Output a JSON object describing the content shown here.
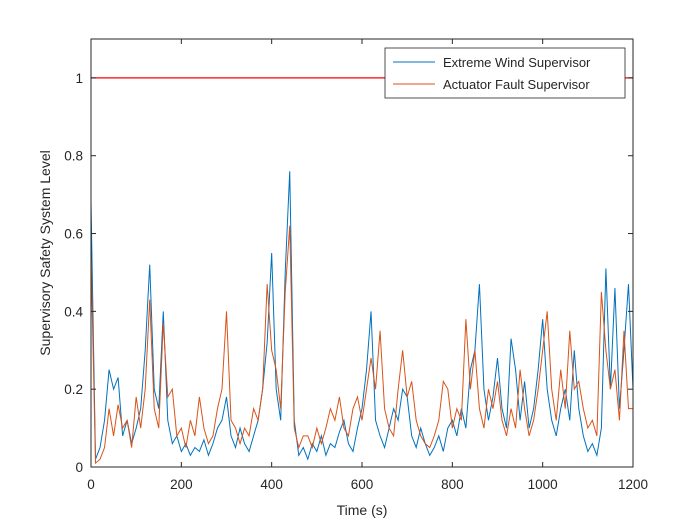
{
  "chart_data": {
    "type": "line",
    "xlabel": "Time (s)",
    "ylabel": "Supervisory Safety System Level",
    "xlim": [
      0,
      1200
    ],
    "ylim": [
      0,
      1.1
    ],
    "xticks": [
      0,
      200,
      400,
      600,
      800,
      1000,
      1200
    ],
    "yticks": [
      0,
      0.2,
      0.4,
      0.6,
      0.8,
      1
    ],
    "legend": "top-right",
    "hlines": [
      {
        "y": 1,
        "color": "#ff0000"
      }
    ],
    "x": [
      0,
      10,
      20,
      30,
      40,
      50,
      60,
      70,
      80,
      90,
      100,
      110,
      120,
      130,
      140,
      150,
      160,
      170,
      180,
      190,
      200,
      210,
      220,
      230,
      240,
      250,
      260,
      270,
      280,
      290,
      300,
      310,
      320,
      330,
      340,
      350,
      360,
      370,
      380,
      390,
      400,
      410,
      420,
      430,
      440,
      450,
      460,
      470,
      480,
      490,
      500,
      510,
      520,
      530,
      540,
      550,
      560,
      570,
      580,
      590,
      600,
      610,
      620,
      630,
      640,
      650,
      660,
      670,
      680,
      690,
      700,
      710,
      720,
      730,
      740,
      750,
      760,
      770,
      780,
      790,
      800,
      810,
      820,
      830,
      840,
      850,
      860,
      870,
      880,
      890,
      900,
      910,
      920,
      930,
      940,
      950,
      960,
      970,
      980,
      990,
      1000,
      1010,
      1020,
      1030,
      1040,
      1050,
      1060,
      1070,
      1080,
      1090,
      1100,
      1110,
      1120,
      1130,
      1140,
      1150,
      1160,
      1170,
      1180,
      1190,
      1200
    ],
    "series": [
      {
        "name": "Extreme Wind Supervisor",
        "color": "#0072bd",
        "values": [
          0.68,
          0.02,
          0.05,
          0.12,
          0.25,
          0.2,
          0.23,
          0.08,
          0.12,
          0.06,
          0.1,
          0.15,
          0.3,
          0.52,
          0.2,
          0.15,
          0.4,
          0.12,
          0.06,
          0.08,
          0.04,
          0.06,
          0.03,
          0.05,
          0.04,
          0.07,
          0.03,
          0.06,
          0.1,
          0.12,
          0.18,
          0.08,
          0.05,
          0.1,
          0.06,
          0.04,
          0.08,
          0.12,
          0.2,
          0.32,
          0.55,
          0.2,
          0.12,
          0.5,
          0.76,
          0.12,
          0.03,
          0.05,
          0.02,
          0.06,
          0.04,
          0.08,
          0.03,
          0.06,
          0.05,
          0.09,
          0.12,
          0.06,
          0.04,
          0.1,
          0.15,
          0.25,
          0.4,
          0.12,
          0.08,
          0.05,
          0.1,
          0.15,
          0.12,
          0.2,
          0.18,
          0.08,
          0.05,
          0.1,
          0.06,
          0.03,
          0.05,
          0.08,
          0.04,
          0.1,
          0.12,
          0.08,
          0.15,
          0.1,
          0.25,
          0.3,
          0.47,
          0.2,
          0.12,
          0.18,
          0.28,
          0.15,
          0.1,
          0.33,
          0.25,
          0.12,
          0.22,
          0.1,
          0.15,
          0.25,
          0.38,
          0.2,
          0.12,
          0.08,
          0.15,
          0.2,
          0.12,
          0.3,
          0.15,
          0.08,
          0.04,
          0.06,
          0.03,
          0.1,
          0.51,
          0.2,
          0.46,
          0.15,
          0.3,
          0.47,
          0.2
        ]
      },
      {
        "name": "Actuator Fault Supervisor",
        "color": "#d95319",
        "values": [
          0.55,
          0.01,
          0.02,
          0.05,
          0.15,
          0.08,
          0.16,
          0.1,
          0.12,
          0.05,
          0.18,
          0.1,
          0.2,
          0.43,
          0.15,
          0.1,
          0.37,
          0.18,
          0.2,
          0.08,
          0.1,
          0.05,
          0.12,
          0.08,
          0.18,
          0.1,
          0.06,
          0.08,
          0.15,
          0.2,
          0.4,
          0.12,
          0.1,
          0.06,
          0.1,
          0.08,
          0.15,
          0.12,
          0.2,
          0.47,
          0.3,
          0.25,
          0.15,
          0.45,
          0.62,
          0.1,
          0.05,
          0.08,
          0.08,
          0.05,
          0.1,
          0.06,
          0.1,
          0.15,
          0.12,
          0.18,
          0.1,
          0.08,
          0.15,
          0.18,
          0.12,
          0.2,
          0.28,
          0.2,
          0.35,
          0.15,
          0.1,
          0.08,
          0.2,
          0.3,
          0.18,
          0.22,
          0.12,
          0.08,
          0.06,
          0.05,
          0.08,
          0.12,
          0.22,
          0.2,
          0.1,
          0.15,
          0.12,
          0.38,
          0.2,
          0.3,
          0.15,
          0.1,
          0.2,
          0.15,
          0.22,
          0.12,
          0.08,
          0.15,
          0.1,
          0.25,
          0.15,
          0.08,
          0.12,
          0.2,
          0.3,
          0.4,
          0.2,
          0.12,
          0.25,
          0.15,
          0.35,
          0.2,
          0.22,
          0.15,
          0.1,
          0.12,
          0.08,
          0.45,
          0.3,
          0.2,
          0.25,
          0.12,
          0.35,
          0.15,
          0.15
        ]
      }
    ]
  }
}
